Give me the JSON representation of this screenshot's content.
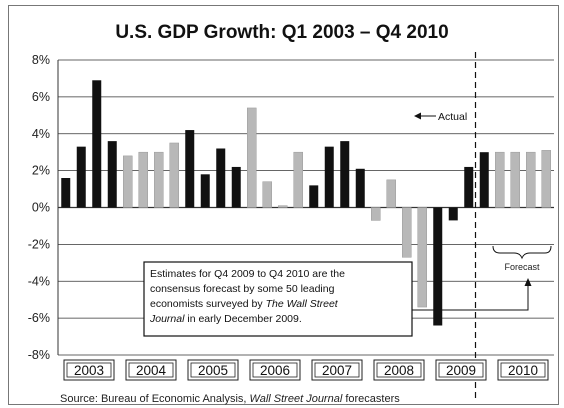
{
  "chart_data": {
    "type": "bar",
    "title": "U.S. GDP Growth: Q1 2003 – Q4 2010",
    "xlabel": "",
    "ylabel": "",
    "ylim": [
      -8,
      8
    ],
    "yticks": [
      "8%",
      "6%",
      "4%",
      "2%",
      "0%",
      "-2%",
      "-4%",
      "-6%",
      "-8%"
    ],
    "grid": true,
    "categories": [
      "2003 Q1",
      "2003 Q2",
      "2003 Q3",
      "2003 Q4",
      "2004 Q1",
      "2004 Q2",
      "2004 Q3",
      "2004 Q4",
      "2005 Q1",
      "2005 Q2",
      "2005 Q3",
      "2005 Q4",
      "2006 Q1",
      "2006 Q2",
      "2006 Q3",
      "2006 Q4",
      "2007 Q1",
      "2007 Q2",
      "2007 Q3",
      "2007 Q4",
      "2008 Q1",
      "2008 Q2",
      "2008 Q3",
      "2008 Q4",
      "2009 Q1",
      "2009 Q2",
      "2009 Q3",
      "2009 Q4",
      "2010 Q1",
      "2010 Q2",
      "2010 Q3",
      "2010 Q4"
    ],
    "year_labels": [
      "2003",
      "2004",
      "2005",
      "2006",
      "2007",
      "2008",
      "2009",
      "2010"
    ],
    "values": [
      1.6,
      3.3,
      6.9,
      3.6,
      2.8,
      3.0,
      3.0,
      3.5,
      4.2,
      1.8,
      3.2,
      2.2,
      5.4,
      1.4,
      0.1,
      3.0,
      1.2,
      3.3,
      3.6,
      2.1,
      -0.7,
      1.5,
      -2.7,
      -5.4,
      -6.4,
      -0.7,
      2.2,
      3.0,
      3.0,
      3.0,
      3.0,
      3.1
    ],
    "highlighted": [
      true,
      true,
      true,
      true,
      false,
      false,
      false,
      false,
      true,
      true,
      true,
      true,
      false,
      false,
      false,
      false,
      true,
      true,
      true,
      true,
      false,
      false,
      false,
      false,
      true,
      true,
      true,
      true,
      false,
      false,
      false,
      false
    ],
    "forecast_from_index": 27,
    "colors": {
      "highlight_bar": "#111111",
      "other_bar": "#b8b8b8",
      "grid": "#333333",
      "frame": "#777777"
    },
    "annotations": {
      "actual": "Actual",
      "forecast": "Forecast",
      "note_lines": [
        {
          "text": "Estimates for Q4 2009 to Q4 2010 are the",
          "italic": false
        },
        {
          "text": "consensus forecast by some 50 leading",
          "italic": false
        },
        {
          "text": "economists surveyed by ",
          "italic": false,
          "suffix": "The Wall Street",
          "suffix_italic": true
        },
        {
          "text": "Journal",
          "italic": true,
          "suffix": " in early December 2009.",
          "suffix_italic": false
        }
      ]
    },
    "source": {
      "prefix": "Source: Bureau of Economic Analysis, ",
      "italic": "Wall Street Journal",
      "suffix": " forecasters"
    }
  }
}
